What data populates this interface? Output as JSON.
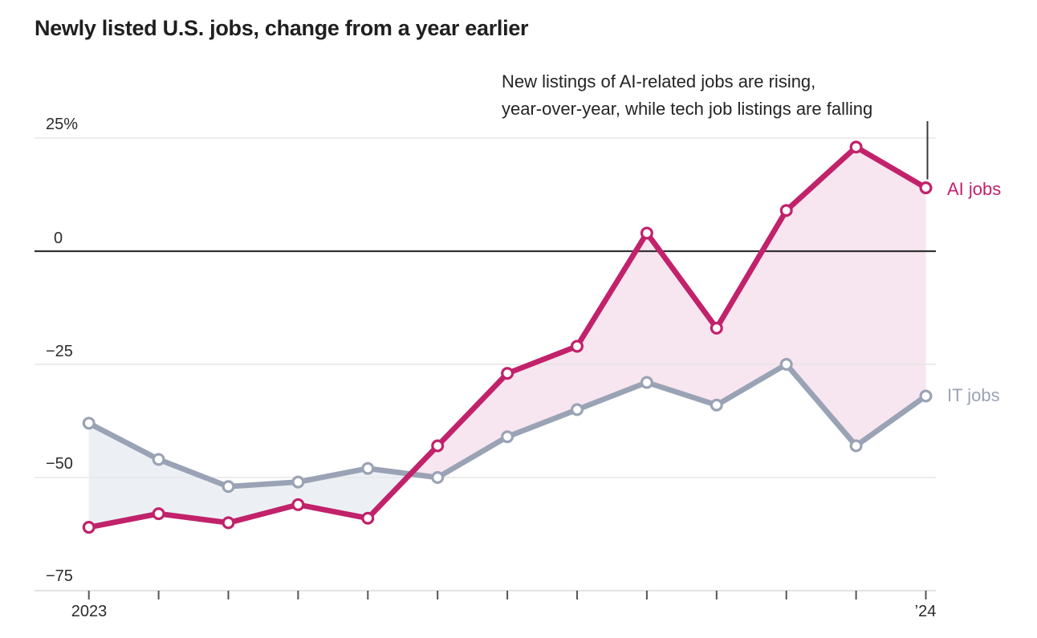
{
  "title": "Newly listed U.S. jobs, change from a year earlier",
  "annotation": {
    "line1": "New listings of AI-related jobs are rising,",
    "line2": "year-over-year, while tech job listings are falling"
  },
  "colors": {
    "ai": "#c1226b",
    "it": "#9aa3b5",
    "ai_fill": "#f7e5ef",
    "it_fill": "#ecf0f5",
    "grid": "#e6e6e6",
    "axis": "#dadada",
    "zero_line": "#333333",
    "tick": "#555555",
    "pointer": "#3a3a3a",
    "marker_fill": "#ffffff",
    "text": "#222222"
  },
  "chart_data": {
    "type": "line",
    "title": "Newly listed U.S. jobs, change from a year earlier",
    "x": [
      "Jan 2023",
      "Feb 2023",
      "Mar 2023",
      "Apr 2023",
      "May 2023",
      "Jun 2023",
      "Jul 2023",
      "Aug 2023",
      "Sep 2023",
      "Oct 2023",
      "Nov 2023",
      "Dec 2023",
      "Jan 2024"
    ],
    "x_axis": {
      "start_label": "2023",
      "end_label": "’24"
    },
    "yticks": [
      {
        "value": 25,
        "label": "25%"
      },
      {
        "value": 0,
        "label": "0"
      },
      {
        "value": -25,
        "label": "−25"
      },
      {
        "value": -50,
        "label": "−50"
      },
      {
        "value": -75,
        "label": "−75"
      }
    ],
    "ylim": [
      -75,
      25
    ],
    "unit": "percent change year-over-year",
    "grid": "horizontal",
    "legend_position": "right-of-last-point",
    "fill_between": "colored by series on top (pink where AI jobs above, blue-gray where IT jobs above)",
    "series": [
      {
        "name": "AI jobs",
        "color": "#c1226b",
        "values": [
          -61,
          -58,
          -60,
          -56,
          -59,
          -43,
          -27,
          -21,
          4,
          -17,
          9,
          23,
          14
        ]
      },
      {
        "name": "IT jobs",
        "color": "#9aa3b5",
        "values": [
          -38,
          -46,
          -52,
          -51,
          -48,
          -50,
          -41,
          -35,
          -29,
          -34,
          -25,
          -43,
          -32
        ]
      }
    ]
  }
}
